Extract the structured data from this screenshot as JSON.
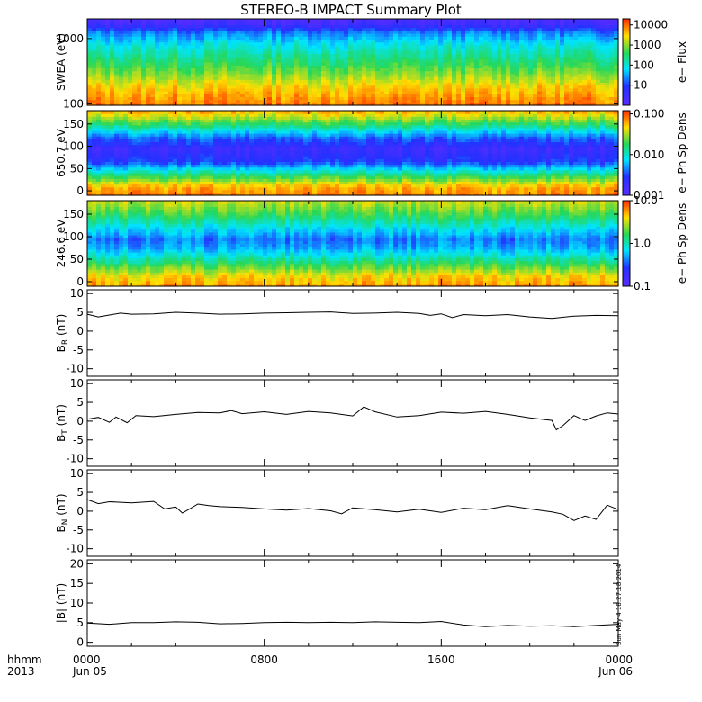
{
  "title": "STEREO-B IMPACT Summary Plot",
  "time_axis": {
    "corner_labels": [
      "hhmm",
      "2013"
    ],
    "ticks": [
      {
        "hhmm": "0000",
        "date": "Jun 05",
        "hours": 0
      },
      {
        "hhmm": "0800",
        "date": "",
        "hours": 8
      },
      {
        "hhmm": "1600",
        "date": "",
        "hours": 16
      },
      {
        "hhmm": "0000",
        "date": "Jun 06",
        "hours": 24
      }
    ],
    "range_hours": [
      0,
      24
    ]
  },
  "timestamp": "Sun May  4 18:27:18 2014",
  "chart_data": [
    {
      "type": "heatmap",
      "ylabel": "SWEA (eV)",
      "yscale": "log",
      "ylim": [
        95,
        2000
      ],
      "yticks": [
        {
          "v": 100,
          "label": "100"
        },
        {
          "v": 1000,
          "label": "1000"
        }
      ],
      "colorbar": {
        "label": "e− Flux",
        "scale": "log",
        "range": [
          1,
          20000
        ],
        "ticks": [
          {
            "v": 10,
            "label": "10"
          },
          {
            "v": 100,
            "label": "100"
          },
          {
            "v": 1000,
            "label": "1000"
          },
          {
            "v": 10000,
            "label": "10000"
          }
        ]
      },
      "description_profile": "fill level (0=violet,1=red) vs normalized y (0=bottom,1=top)",
      "profile": [
        [
          0,
          0.92
        ],
        [
          0.2,
          0.82
        ],
        [
          0.45,
          0.62
        ],
        [
          0.7,
          0.45
        ],
        [
          0.85,
          0.3
        ],
        [
          0.93,
          0.12
        ],
        [
          1,
          0.05
        ]
      ]
    },
    {
      "type": "heatmap",
      "ylabel": "650.7 eV",
      "yscale": "linear",
      "ylim": [
        -10,
        180
      ],
      "yticks": [
        {
          "v": 0,
          "label": "0"
        },
        {
          "v": 50,
          "label": "50"
        },
        {
          "v": 100,
          "label": "100"
        },
        {
          "v": 150,
          "label": "150"
        }
      ],
      "colorbar": {
        "label": "e− Ph Sp Dens",
        "scale": "log",
        "range": [
          0.001,
          0.12
        ],
        "ticks": [
          {
            "v": 0.001,
            "label": "0.001"
          },
          {
            "v": 0.01,
            "label": "0.010"
          },
          {
            "v": 0.1,
            "label": "0.100"
          }
        ]
      },
      "profile": [
        [
          0,
          0.9
        ],
        [
          0.1,
          0.85
        ],
        [
          0.25,
          0.55
        ],
        [
          0.4,
          0.22
        ],
        [
          0.55,
          0.12
        ],
        [
          0.7,
          0.3
        ],
        [
          0.85,
          0.6
        ],
        [
          1,
          0.85
        ]
      ]
    },
    {
      "type": "heatmap",
      "ylabel": "246.6 eV",
      "yscale": "linear",
      "ylim": [
        -10,
        180
      ],
      "yticks": [
        {
          "v": 0,
          "label": "0"
        },
        {
          "v": 50,
          "label": "50"
        },
        {
          "v": 100,
          "label": "100"
        },
        {
          "v": 150,
          "label": "150"
        }
      ],
      "colorbar": {
        "label": "e− Ph Sp Dens",
        "scale": "log",
        "range": [
          0.1,
          10
        ],
        "ticks": [
          {
            "v": 0.1,
            "label": "0.1"
          },
          {
            "v": 1,
            "label": "1.0"
          },
          {
            "v": 10,
            "label": "10.0"
          }
        ]
      },
      "profile": [
        [
          0,
          0.88
        ],
        [
          0.12,
          0.8
        ],
        [
          0.3,
          0.55
        ],
        [
          0.45,
          0.35
        ],
        [
          0.55,
          0.3
        ],
        [
          0.7,
          0.45
        ],
        [
          0.85,
          0.62
        ],
        [
          1,
          0.75
        ]
      ]
    },
    {
      "type": "line",
      "ylabel": "B",
      "ylabel_sub": "R",
      "ylabel_unit": " (nT)",
      "ylim": [
        -12,
        11
      ],
      "yticks": [
        -10,
        -5,
        0,
        5,
        10
      ],
      "x": [
        0,
        0.5,
        1,
        1.5,
        2,
        3,
        4,
        5,
        6,
        7,
        8,
        9,
        10,
        11,
        12,
        13,
        14,
        15,
        15.5,
        16,
        16.5,
        17,
        18,
        19,
        20,
        21,
        22,
        23,
        24
      ],
      "y": [
        4.5,
        3.8,
        4.3,
        4.8,
        4.5,
        4.6,
        5.0,
        4.8,
        4.5,
        4.6,
        4.8,
        4.9,
        5.0,
        5.1,
        4.7,
        4.8,
        5.0,
        4.7,
        4.2,
        4.6,
        3.6,
        4.4,
        4.1,
        4.4,
        3.8,
        3.4,
        4.0,
        4.2,
        4.1
      ]
    },
    {
      "type": "line",
      "ylabel": "B",
      "ylabel_sub": "T",
      "ylabel_unit": " (nT)",
      "ylim": [
        -12,
        11
      ],
      "yticks": [
        -10,
        -5,
        0,
        5,
        10
      ],
      "x": [
        0,
        0.5,
        1,
        1.3,
        1.8,
        2.2,
        3,
        4,
        5,
        6,
        6.5,
        7,
        8,
        9,
        10,
        11,
        12,
        12.5,
        13,
        14,
        15,
        16,
        17,
        18,
        19,
        20,
        21,
        21.2,
        21.5,
        22,
        22.5,
        23,
        23.5,
        24
      ],
      "y": [
        0.5,
        1.0,
        -0.3,
        1.1,
        -0.4,
        1.5,
        1.2,
        1.8,
        2.3,
        2.2,
        2.8,
        2.0,
        2.5,
        1.8,
        2.6,
        2.2,
        1.4,
        3.8,
        2.5,
        1.1,
        1.5,
        2.4,
        2.1,
        2.6,
        1.8,
        0.9,
        0.2,
        -2.3,
        -1.2,
        1.5,
        0.2,
        1.4,
        2.2,
        1.9
      ]
    },
    {
      "type": "line",
      "ylabel": "B",
      "ylabel_sub": "N",
      "ylabel_unit": " (nT)",
      "ylim": [
        -12,
        11
      ],
      "yticks": [
        -10,
        -5,
        0,
        5,
        10
      ],
      "x": [
        0,
        0.5,
        1,
        2,
        3,
        3.5,
        4,
        4.3,
        4.6,
        5,
        5.5,
        6,
        7,
        8,
        9,
        10,
        11,
        11.5,
        12,
        13,
        14,
        15,
        16,
        17,
        18,
        19,
        20,
        21,
        21.5,
        22,
        22.5,
        23,
        23.5,
        24
      ],
      "y": [
        3.1,
        2.0,
        2.5,
        2.2,
        2.6,
        0.6,
        1.1,
        -0.5,
        0.5,
        1.9,
        1.5,
        1.2,
        1.0,
        0.6,
        0.3,
        0.7,
        0.1,
        -0.7,
        0.9,
        0.4,
        -0.2,
        0.5,
        -0.3,
        0.8,
        0.4,
        1.5,
        0.6,
        -0.2,
        -0.8,
        -2.5,
        -1.3,
        -2.2,
        1.6,
        0.4
      ]
    },
    {
      "type": "line",
      "ylabel": "|B| (nT)",
      "ylim": [
        -1,
        21
      ],
      "yticks": [
        0,
        5,
        10,
        15,
        20
      ],
      "x": [
        0,
        1,
        2,
        3,
        4,
        5,
        6,
        7,
        8,
        9,
        10,
        11,
        12,
        13,
        14,
        15,
        16,
        17,
        18,
        19,
        20,
        21,
        22,
        23,
        24
      ],
      "y": [
        4.9,
        4.6,
        5.0,
        5.0,
        5.2,
        5.1,
        4.7,
        4.8,
        5.0,
        5.1,
        5.0,
        5.1,
        5.0,
        5.2,
        5.1,
        5.0,
        5.3,
        4.4,
        4.0,
        4.3,
        4.1,
        4.2,
        4.0,
        4.3,
        4.6
      ]
    }
  ],
  "palette": {
    "stops": [
      "#5b2cff",
      "#2232ff",
      "#00e5ff",
      "#25d85a",
      "#ffe000",
      "#ff2a00"
    ]
  }
}
